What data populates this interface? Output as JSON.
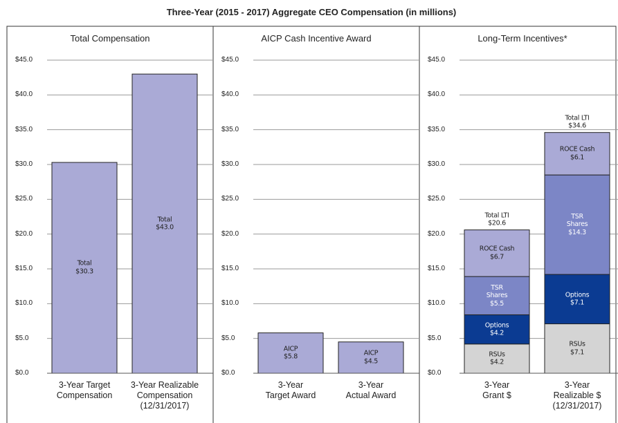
{
  "title": "Three-Year (2015 - 2017) Aggregate CEO Compensation (in millions)",
  "chart_data": [
    {
      "type": "bar",
      "title": "Total Compensation",
      "categories": [
        "3-Year Target\nCompensation",
        "3-Year Realizable\nCompensation\n(12/31/2017)"
      ],
      "values": [
        30.3,
        43.0
      ],
      "value_labels": [
        "Total\n$30.3",
        "Total\n$43.0"
      ],
      "color": "#aaaad6",
      "ylim": [
        0,
        45
      ],
      "yticks": [
        {
          "value": 0,
          "label": "$0.0"
        },
        {
          "value": 5,
          "label": "$5.0"
        },
        {
          "value": 10,
          "label": "$10.0"
        },
        {
          "value": 15,
          "label": "$15.0"
        },
        {
          "value": 20,
          "label": "$20.0"
        },
        {
          "value": 25,
          "label": "$25.0"
        },
        {
          "value": 30,
          "label": "$30.0"
        },
        {
          "value": 35,
          "label": "$35.0"
        },
        {
          "value": 40,
          "label": "$40.0"
        },
        {
          "value": 45,
          "label": "$45.0"
        }
      ],
      "grid": true
    },
    {
      "type": "bar",
      "title": "AICP Cash Incentive Award",
      "categories": [
        "3-Year\nTarget Award",
        "3-Year\nActual Award"
      ],
      "values": [
        5.8,
        4.5
      ],
      "value_labels": [
        "AICP\n$5.8",
        "AICP\n$4.5"
      ],
      "color": "#aaaad6",
      "ylim": [
        0,
        45
      ],
      "yticks": [
        {
          "value": 0,
          "label": "$0.0"
        },
        {
          "value": 5,
          "label": "$5.0"
        },
        {
          "value": 10,
          "label": "$10.0"
        },
        {
          "value": 15,
          "label": "$15.0"
        },
        {
          "value": 20,
          "label": "$20.0"
        },
        {
          "value": 25,
          "label": "$25.0"
        },
        {
          "value": 30,
          "label": "$30.0"
        },
        {
          "value": 35,
          "label": "$35.0"
        },
        {
          "value": 40,
          "label": "$40.0"
        },
        {
          "value": 45,
          "label": "$45.0"
        }
      ],
      "grid": true
    },
    {
      "type": "stacked_bar",
      "title": "Long-Term Incentives*",
      "categories": [
        "3-Year\nGrant $",
        "3-Year Realizable $\n(12/31/2017)"
      ],
      "series": [
        {
          "name": "RSUs",
          "color": "#d4d4d4",
          "values": [
            4.2,
            7.1
          ],
          "value_labels": [
            "RSUs\n$4.2",
            "RSUs\n$7.1"
          ]
        },
        {
          "name": "Options",
          "color": "#0b3b92",
          "values": [
            4.2,
            7.1
          ],
          "value_labels": [
            "Options\n$4.2",
            "Options\n$7.1"
          ]
        },
        {
          "name": "TSR Shares",
          "color": "#7c86c6",
          "values": [
            5.5,
            14.3
          ],
          "value_labels": [
            "TSR\nShares\n$5.5",
            "TSR\nShares\n$14.3"
          ]
        },
        {
          "name": "ROCE Cash",
          "color": "#aaaad6",
          "values": [
            6.7,
            6.1
          ],
          "value_labels": [
            "ROCE Cash\n$6.7",
            "ROCE Cash\n$6.1"
          ]
        }
      ],
      "totals": [
        20.6,
        34.6
      ],
      "total_labels": [
        "Total LTI\n$20.6",
        "Total LTI\n$34.6"
      ],
      "ylim": [
        0,
        45
      ],
      "yticks": [
        {
          "value": 0,
          "label": "$0.0"
        },
        {
          "value": 5,
          "label": "$5.0"
        },
        {
          "value": 10,
          "label": "$10.0"
        },
        {
          "value": 15,
          "label": "$15.0"
        },
        {
          "value": 20,
          "label": "$20.0"
        },
        {
          "value": 25,
          "label": "$25.0"
        },
        {
          "value": 30,
          "label": "$30.0"
        },
        {
          "value": 35,
          "label": "$35.0"
        },
        {
          "value": 40,
          "label": "$40.0"
        },
        {
          "value": 45,
          "label": "$45.0"
        }
      ],
      "grid": true
    }
  ]
}
